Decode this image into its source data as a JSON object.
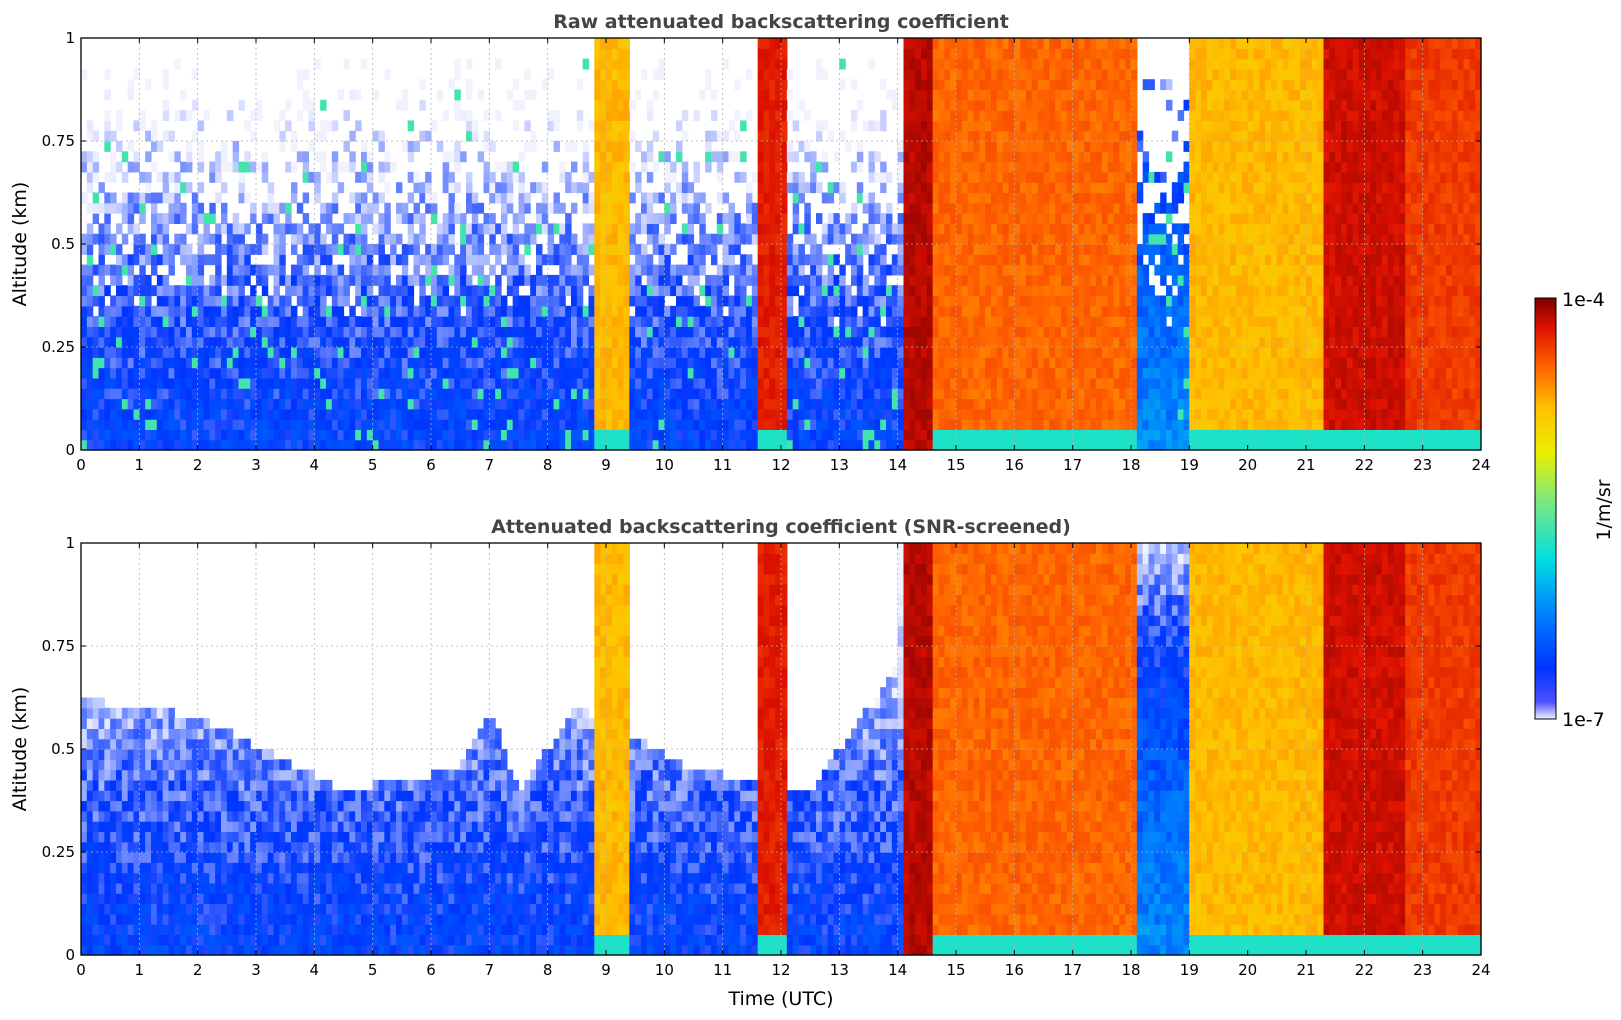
{
  "figure": {
    "colorbar": {
      "label": "1/m/sr",
      "max_label": "1e-4",
      "min_label": "1e-7",
      "scale": "log",
      "range": [
        1e-07,
        0.0001
      ],
      "colormap": [
        "#f2f2ff",
        "#0033ff",
        "#0080ff",
        "#00e0e0",
        "#7de87d",
        "#e8f000",
        "#ffc000",
        "#ff6000",
        "#dd1100",
        "#7a0000"
      ]
    }
  },
  "chart_data": [
    {
      "type": "heatmap",
      "title": "Raw attenuated backscattering coefficient",
      "xlabel": "",
      "ylabel": "Altitude (km)",
      "xlim": [
        0,
        24
      ],
      "ylim": [
        0,
        1
      ],
      "x_ticks": [
        "0",
        "1",
        "2",
        "3",
        "4",
        "5",
        "6",
        "7",
        "8",
        "9",
        "10",
        "11",
        "12",
        "13",
        "14",
        "15",
        "16",
        "17",
        "18",
        "19",
        "20",
        "21",
        "22",
        "23",
        "24"
      ],
      "y_ticks": [
        "0",
        "0.25",
        "0.5",
        "0.75",
        "1"
      ],
      "grid": true,
      "bands": [
        {
          "x": [
            0,
            8.8
          ],
          "value": 1.5e-07,
          "note": "blue noisy, sparse aloft"
        },
        {
          "x": [
            8.8,
            9.4
          ],
          "value": 1e-05
        },
        {
          "x": [
            9.4,
            11.6
          ],
          "value": 1.5e-07
        },
        {
          "x": [
            11.6,
            12.1
          ],
          "value": 4e-05
        },
        {
          "x": [
            12.1,
            14.1
          ],
          "value": 1.5e-07
        },
        {
          "x": [
            14.1,
            14.6
          ],
          "value": 6e-05
        },
        {
          "x": [
            14.6,
            18.1
          ],
          "value": 2e-05
        },
        {
          "x": [
            18.1,
            19.0
          ],
          "value": 3e-07
        },
        {
          "x": [
            19.0,
            21.3
          ],
          "value": 1e-05
        },
        {
          "x": [
            21.3,
            22.7
          ],
          "value": 5e-05
        },
        {
          "x": [
            22.7,
            24.0
          ],
          "value": 3e-05
        }
      ]
    },
    {
      "type": "heatmap",
      "title": "Attenuated backscattering coefficient (SNR-screened)",
      "xlabel": "Time (UTC)",
      "ylabel": "Altitude (km)",
      "xlim": [
        0,
        24
      ],
      "ylim": [
        0,
        1
      ],
      "x_ticks": [
        "0",
        "1",
        "2",
        "3",
        "4",
        "5",
        "6",
        "7",
        "8",
        "9",
        "10",
        "11",
        "12",
        "13",
        "14",
        "15",
        "16",
        "17",
        "18",
        "19",
        "20",
        "21",
        "22",
        "23",
        "24"
      ],
      "y_ticks": [
        "0",
        "0.25",
        "0.5",
        "0.75",
        "1"
      ],
      "grid": true,
      "screened_top_altitude_km": [
        {
          "x": 0,
          "alt": 0.62
        },
        {
          "x": 2,
          "alt": 0.58
        },
        {
          "x": 4.5,
          "alt": 0.4
        },
        {
          "x": 6.5,
          "alt": 0.45
        },
        {
          "x": 7.0,
          "alt": 0.6
        },
        {
          "x": 7.5,
          "alt": 0.4
        },
        {
          "x": 8.5,
          "alt": 0.6
        },
        {
          "x": 10.5,
          "alt": 0.45
        },
        {
          "x": 12.5,
          "alt": 0.4
        },
        {
          "x": 14.0,
          "alt": 0.7
        }
      ]
    }
  ]
}
